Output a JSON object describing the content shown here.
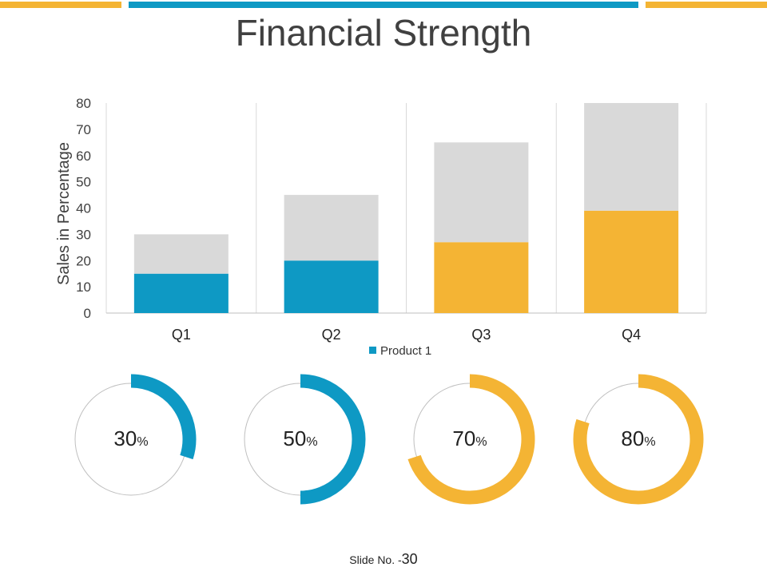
{
  "slide": {
    "title": "Financial Strength",
    "footer_label": "Slide No. -",
    "footer_number": "30"
  },
  "colors": {
    "blue": "#0E99C4",
    "orange": "#F4B434",
    "gray": "#D9D9D9",
    "track": "#BFBFBF"
  },
  "chart_data": [
    {
      "type": "bar",
      "stacked": true,
      "categories": [
        "Q1",
        "Q2",
        "Q3",
        "Q4"
      ],
      "series": [
        {
          "name": "Product 1",
          "values": [
            15,
            20,
            27,
            39
          ],
          "colors": [
            "#0E99C4",
            "#0E99C4",
            "#F4B434",
            "#F4B434"
          ]
        },
        {
          "name": "",
          "values": [
            15,
            25,
            38,
            41
          ],
          "color": "#D9D9D9"
        }
      ],
      "ylabel": "Sales in Percentage",
      "ylim": [
        0,
        80
      ],
      "yticks": [
        0,
        10,
        20,
        30,
        40,
        50,
        60,
        70,
        80
      ],
      "legend": "bottom",
      "grid": "vertical"
    },
    {
      "type": "pie",
      "style": "donut",
      "items": [
        {
          "value": 30,
          "label": "30",
          "unit": "%",
          "color": "#0E99C4"
        },
        {
          "value": 50,
          "label": "50",
          "unit": "%",
          "color": "#0E99C4"
        },
        {
          "value": 70,
          "label": "70",
          "unit": "%",
          "color": "#F4B434"
        },
        {
          "value": 80,
          "label": "80",
          "unit": "%",
          "color": "#F4B434"
        }
      ]
    }
  ]
}
